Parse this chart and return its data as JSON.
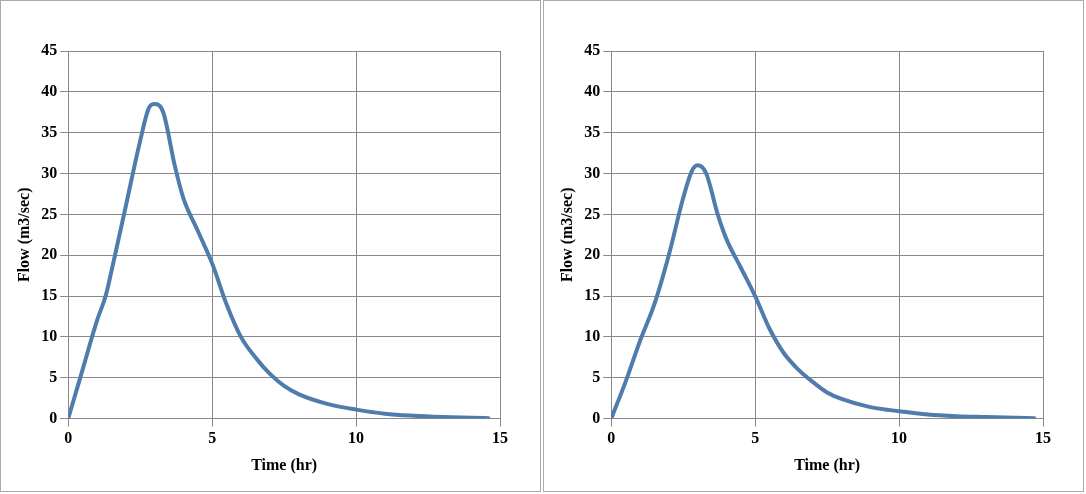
{
  "chart_data": [
    {
      "type": "line",
      "xlabel": "Time (hr)",
      "ylabel": "Flow (m3/sec)",
      "xlim": [
        0,
        15
      ],
      "xticks": [
        0,
        5,
        10,
        15
      ],
      "ylim": [
        0,
        45
      ],
      "yticks": [
        0,
        5,
        10,
        15,
        20,
        25,
        30,
        35,
        40,
        45
      ],
      "grid": true,
      "legend": false,
      "marker": "none",
      "series": [
        {
          "color": "#4f7cac",
          "x": [
            0,
            0.5,
            1,
            1.3,
            1.5,
            2,
            2.5,
            2.8,
            3,
            3.3,
            3.7,
            4,
            4.5,
            5,
            5.5,
            6,
            6.5,
            7,
            7.5,
            8,
            9,
            10,
            11,
            12,
            13,
            14,
            14.6
          ],
          "values": [
            0,
            6,
            12,
            15,
            18,
            26,
            34,
            38,
            38.5,
            37.5,
            31,
            27,
            23,
            19,
            14,
            10,
            7.5,
            5.5,
            4,
            3,
            1.8,
            1.1,
            0.6,
            0.35,
            0.2,
            0.1,
            0.05
          ]
        }
      ]
    },
    {
      "type": "line",
      "xlabel": "Time (hr)",
      "ylabel": "Flow (m3/sec)",
      "xlim": [
        0,
        15
      ],
      "xticks": [
        0,
        5,
        10,
        15
      ],
      "ylim": [
        0,
        45
      ],
      "yticks": [
        0,
        5,
        10,
        15,
        20,
        25,
        30,
        35,
        40,
        45
      ],
      "grid": true,
      "legend": false,
      "marker": "none",
      "series": [
        {
          "color": "#4f7cac",
          "x": [
            0,
            0.5,
            1,
            1.5,
            2,
            2.5,
            2.8,
            3,
            3.3,
            3.7,
            4,
            4.5,
            5,
            5.5,
            6,
            6.5,
            7,
            7.5,
            8,
            9,
            10,
            11,
            12,
            13,
            14,
            14.7
          ],
          "values": [
            0,
            4.5,
            9.5,
            14,
            20,
            27,
            30.3,
            31,
            30,
            25,
            22,
            18.5,
            15,
            11,
            8,
            6,
            4.5,
            3.2,
            2.4,
            1.4,
            0.9,
            0.5,
            0.3,
            0.2,
            0.1,
            0.05
          ]
        }
      ]
    }
  ]
}
